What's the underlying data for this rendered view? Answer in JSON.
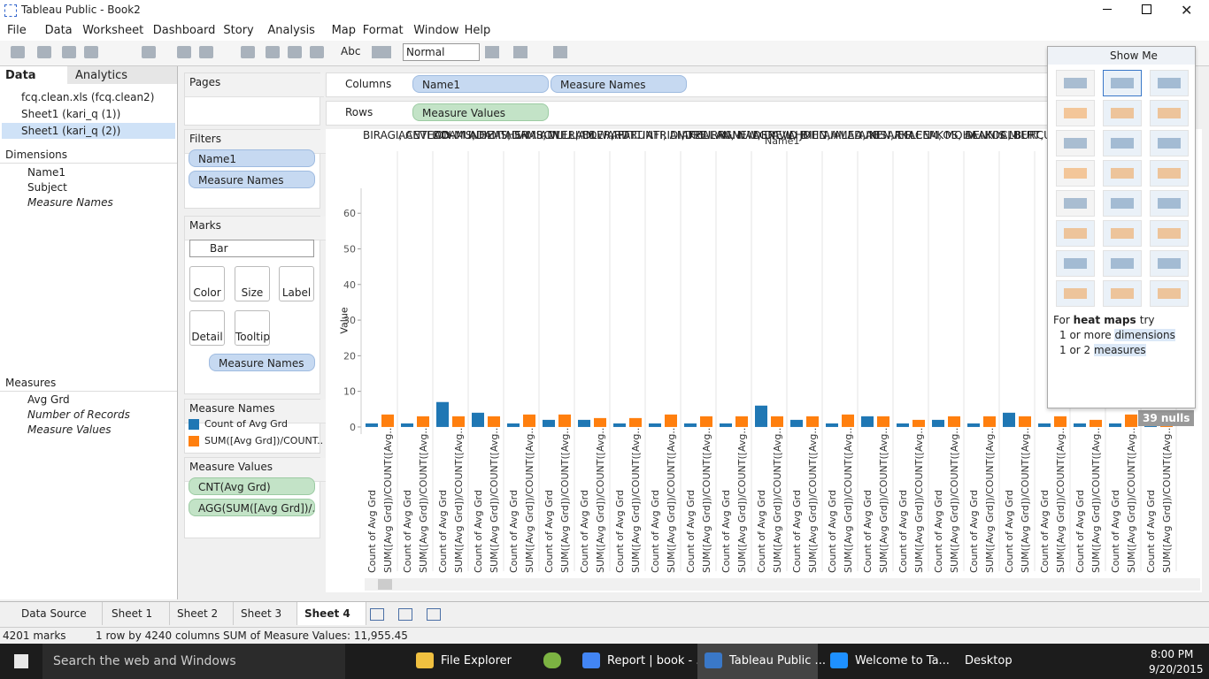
{
  "window": {
    "title": "Tableau Public - Book2"
  },
  "menu": [
    "File",
    "Data",
    "Worksheet",
    "Dashboard",
    "Story",
    "Analysis",
    "Map",
    "Format",
    "Window",
    "Help"
  ],
  "toolbar": {
    "label_button": "Abc",
    "fit": "Normal"
  },
  "data_pane": {
    "tabs": [
      "Data",
      "Analytics"
    ],
    "sources": [
      "fcq.clean.xls (fcq.clean2)",
      "Sheet1 (kari_q (1))",
      "Sheet1 (kari_q (2))"
    ],
    "dimensions_title": "Dimensions",
    "dimensions": [
      "Name1",
      "Subject",
      "Measure Names"
    ],
    "measures_title": "Measures",
    "measures": [
      "Avg Grd",
      "Number of Records",
      "Measure Values"
    ]
  },
  "cards": {
    "pages": "Pages",
    "filters_title": "Filters",
    "filters": [
      "Name1",
      "Measure Names"
    ],
    "marks_title": "Marks",
    "mark_type": "Bar",
    "mark_buttons": [
      "Color",
      "Size",
      "Label",
      "Detail",
      "Tooltip"
    ],
    "marks_field": "Measure Names",
    "legend_title": "Measure Names",
    "values_title": "Measure Values",
    "values_pills": [
      "CNT(Avg Grd)",
      "AGG(SUM([Avg Grd])/.."
    ]
  },
  "shelves": {
    "columns_label": "Columns",
    "columns": [
      "Name1",
      "Measure Names"
    ],
    "rows_label": "Rows",
    "rows": [
      "Measure Values"
    ]
  },
  "viz": {
    "header": "Name1",
    "y_label": "Value",
    "ylim": [
      -2,
      67
    ],
    "yticks": [
      0,
      10,
      20,
      30,
      40,
      50,
      60
    ],
    "names": [
      "BIRAGI, ANTHON..",
      "ACEVEDO-MUNOZ..",
      "ADAMS, HEATHER..",
      "ADAMS, SHARON ..",
      "ADAMS, WILLIAM",
      "ADLER, EDWARD ..",
      "ADLER, PATTI",
      "AFFRUNTI, ANDRE..",
      "AFRIDI, KHURRAM",
      "AFZALAN, NADER",
      "AGNEW, DAVID B",
      "AGNEW, JOHN A",
      "AHMED, ALAA AB..",
      "AHMED, NISAR R..",
      "AIKEN, ELLEN",
      "AKACEM, MOHA..",
      "AKOS, DENNIS M",
      "ALAKOC, BURCU",
      "ALBERT, MICHELL..",
      null,
      null,
      null,
      null
    ],
    "axis_labels": [
      "Count of Avg Grd",
      "SUM([Avg Grd])/COUNT([Avg.."
    ],
    "series": [
      {
        "name": "Count of Avg Grd",
        "color": "#1f77b4",
        "values": [
          1,
          1,
          7,
          4,
          1,
          2,
          2,
          1,
          1,
          1,
          1,
          6,
          2,
          1,
          3,
          1,
          2,
          1,
          4,
          1,
          1,
          1,
          1
        ]
      },
      {
        "name": "SUM([Avg Grd])/COUNT..",
        "color": "#ff7f0e",
        "values": [
          3.5,
          3,
          3,
          3,
          3.5,
          3.5,
          2.5,
          2.5,
          3.5,
          3,
          3,
          3,
          3,
          3.5,
          3,
          2,
          3,
          3,
          3,
          3,
          2,
          3.5,
          3
        ]
      }
    ],
    "nulls": "39 nulls"
  },
  "show_me": {
    "title": "Show Me",
    "hint_pre": "For",
    "hint_bold": "heat maps",
    "hint_post": "try",
    "req1_pre": "1 or more",
    "req1_link": "dimensions",
    "req2_pre": "1 or 2",
    "req2_link": "measures"
  },
  "sheet_tabs": [
    "Data Source",
    "Sheet 1",
    "Sheet 2",
    "Sheet 3",
    "Sheet 4"
  ],
  "status": [
    "4201 marks",
    "1 row by 4240 columns",
    "SUM of Measure Values: 11,955.45"
  ],
  "taskbar": {
    "search": "Search the web and Windows",
    "apps": [
      "File Explorer",
      "Report | book - ...",
      "Tableau Public ...",
      "Welcome to Ta..."
    ],
    "desktop": "Desktop",
    "time": "8:00 PM",
    "date": "9/20/2015"
  }
}
